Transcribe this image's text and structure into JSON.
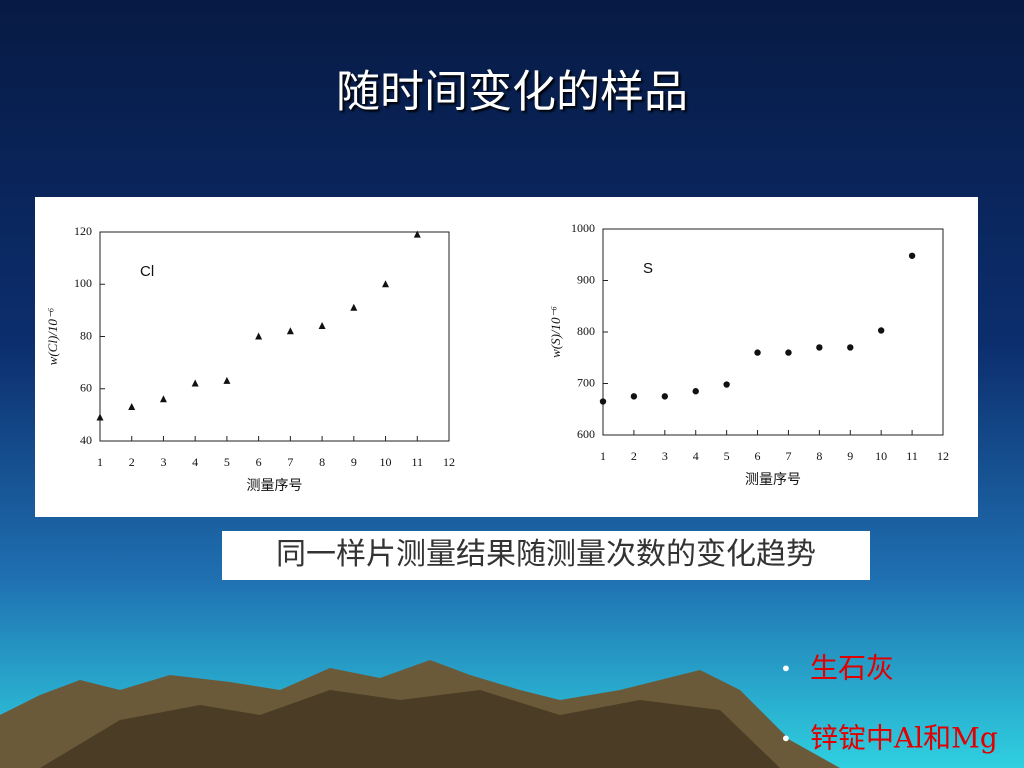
{
  "slide": {
    "title": "随时间变化的样品",
    "caption": "同一样片测量结果随测量次数的变化趋势",
    "bullets": [
      "生石灰",
      "锌锭中Al和Mg"
    ]
  },
  "chart_data": [
    {
      "type": "scatter",
      "marker": "triangle",
      "annotation": "Cl",
      "x_label": "测量序号",
      "y_label": "w(Cl)/10⁻⁶",
      "x": [
        1,
        2,
        3,
        4,
        5,
        6,
        7,
        8,
        9,
        10,
        11
      ],
      "values": [
        49,
        53,
        56,
        62,
        63,
        80,
        82,
        84,
        91,
        100,
        119
      ],
      "xlim": [
        1,
        12
      ],
      "xticks": [
        1,
        2,
        3,
        4,
        5,
        6,
        7,
        8,
        9,
        10,
        11,
        12
      ],
      "ylim": [
        40,
        120
      ],
      "yticks": [
        40,
        60,
        80,
        100,
        120
      ],
      "color": "#111111"
    },
    {
      "type": "scatter",
      "marker": "circle",
      "annotation": "S",
      "x_label": "测量序号",
      "y_label": "w(S)/10⁻⁶",
      "x": [
        1,
        2,
        3,
        4,
        5,
        6,
        7,
        8,
        9,
        10,
        11
      ],
      "values": [
        665,
        675,
        675,
        685,
        698,
        760,
        760,
        770,
        770,
        803,
        948
      ],
      "xlim": [
        1,
        12
      ],
      "xticks": [
        1,
        2,
        3,
        4,
        5,
        6,
        7,
        8,
        9,
        10,
        11,
        12
      ],
      "ylim": [
        600,
        1000
      ],
      "yticks": [
        600,
        700,
        800,
        900,
        1000
      ],
      "color": "#111111"
    }
  ]
}
